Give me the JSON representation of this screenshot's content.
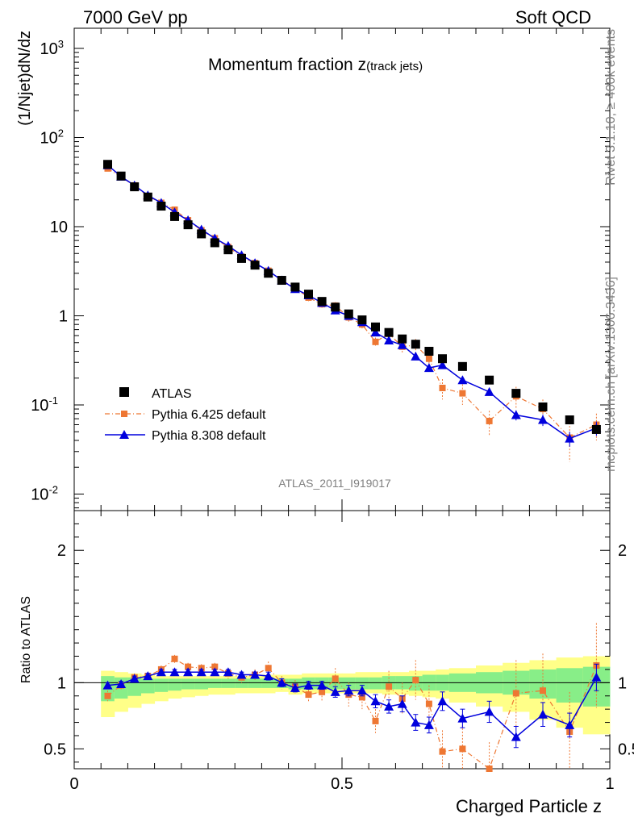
{
  "header": {
    "left": "7000 GeV pp",
    "right": "Soft QCD"
  },
  "side_text": {
    "rivet": "Rivet 3.1.10, ≥ 400k events",
    "mcplots": "mcplots.cern.ch [arXiv:1306.3436]"
  },
  "main": {
    "title_main": "Momentum fraction z",
    "title_sub": "(track jets)",
    "ylabel": "(1/Njet)dN/dz",
    "analysis": "ATLAS_2011_I919017"
  },
  "ratio": {
    "ylabel": "Ratio to ATLAS"
  },
  "xlabel": "Charged Particle z",
  "legend": [
    {
      "name": "ATLAS"
    },
    {
      "name": "Pythia 6.425 default"
    },
    {
      "name": "Pythia 8.308 default"
    }
  ],
  "colors": {
    "data": "#000000",
    "py6": "#ee7733",
    "py8": "#0000dd",
    "band_outer": "#ffff88",
    "band_inner": "#88ee88"
  },
  "chart_data": [
    {
      "type": "scatter",
      "title": "Momentum fraction z(track jets)",
      "xlabel": "Charged Particle z",
      "ylabel": "(1/Njet)dN/dz",
      "xlim": [
        0,
        1
      ],
      "ylim": [
        0.007,
        1400
      ],
      "yscale": "log",
      "y_tick_labels": [
        "10^-2",
        "10^-1",
        "1",
        "10",
        "10^2",
        "10^3"
      ],
      "x_tick_labels": [
        "0",
        "0.5",
        "1"
      ],
      "legend_position": "bottom-left",
      "series": [
        {
          "name": "ATLAS",
          "x": [
            0.0625,
            0.0875,
            0.1125,
            0.1375,
            0.1625,
            0.1875,
            0.2125,
            0.2375,
            0.2625,
            0.2875,
            0.3125,
            0.3375,
            0.3625,
            0.3875,
            0.4125,
            0.4375,
            0.4625,
            0.4875,
            0.5125,
            0.5375,
            0.5625,
            0.5875,
            0.6125,
            0.6375,
            0.6625,
            0.6875,
            0.725,
            0.775,
            0.825,
            0.875,
            0.925,
            0.975
          ],
          "y": [
            50,
            37,
            28,
            21.5,
            17,
            13,
            10.5,
            8.3,
            6.6,
            5.5,
            4.4,
            3.7,
            3.0,
            2.5,
            2.1,
            1.75,
            1.45,
            1.25,
            1.05,
            0.9,
            0.75,
            0.65,
            0.55,
            0.48,
            0.4,
            0.33,
            0.27,
            0.19,
            0.135,
            0.095,
            0.068,
            0.053
          ]
        },
        {
          "name": "Pythia 6.425 default",
          "x": [
            0.0625,
            0.0875,
            0.1125,
            0.1375,
            0.1625,
            0.1875,
            0.2125,
            0.2375,
            0.2625,
            0.2875,
            0.3125,
            0.3375,
            0.3625,
            0.3875,
            0.4125,
            0.4375,
            0.4625,
            0.4875,
            0.5125,
            0.5375,
            0.5625,
            0.5875,
            0.6125,
            0.6375,
            0.6625,
            0.6875,
            0.725,
            0.775,
            0.825,
            0.875,
            0.925,
            0.975
          ],
          "y": [
            45,
            36,
            29,
            22,
            18.5,
            15.5,
            11.8,
            9.1,
            7.4,
            5.9,
            4.6,
            3.9,
            3.2,
            2.5,
            2.05,
            1.6,
            1.35,
            1.3,
            0.96,
            0.8,
            0.51,
            0.63,
            0.45,
            0.47,
            0.33,
            0.155,
            0.135,
            0.066,
            0.125,
            0.09,
            0.043,
            0.06
          ],
          "err": [
            2,
            1.5,
            1.2,
            1,
            0.9,
            0.8,
            0.6,
            0.5,
            0.4,
            0.35,
            0.3,
            0.25,
            0.22,
            0.2,
            0.16,
            0.14,
            0.12,
            0.12,
            0.1,
            0.09,
            0.06,
            0.08,
            0.07,
            0.08,
            0.06,
            0.04,
            0.035,
            0.02,
            0.035,
            0.025,
            0.02,
            0.02
          ]
        },
        {
          "name": "Pythia 8.308 default",
          "x": [
            0.0625,
            0.0875,
            0.1125,
            0.1375,
            0.1625,
            0.1875,
            0.2125,
            0.2375,
            0.2625,
            0.2875,
            0.3125,
            0.3375,
            0.3625,
            0.3875,
            0.4125,
            0.4375,
            0.4625,
            0.4875,
            0.5125,
            0.5375,
            0.5625,
            0.5875,
            0.6125,
            0.6375,
            0.6625,
            0.6875,
            0.725,
            0.775,
            0.825,
            0.875,
            0.925,
            0.975
          ],
          "y": [
            49,
            36.5,
            29,
            22.5,
            18.5,
            14.5,
            11.8,
            9.3,
            7.4,
            6.1,
            4.8,
            3.9,
            3.2,
            2.5,
            2.0,
            1.7,
            1.4,
            1.15,
            1.0,
            0.85,
            0.65,
            0.53,
            0.47,
            0.35,
            0.26,
            0.28,
            0.19,
            0.14,
            0.077,
            0.068,
            0.042,
            0.055
          ],
          "err": [
            0.8,
            0.6,
            0.5,
            0.4,
            0.35,
            0.3,
            0.25,
            0.2,
            0.17,
            0.15,
            0.12,
            0.1,
            0.09,
            0.07,
            0.06,
            0.05,
            0.05,
            0.04,
            0.04,
            0.035,
            0.03,
            0.025,
            0.025,
            0.02,
            0.018,
            0.02,
            0.015,
            0.012,
            0.01,
            0.01,
            0.008,
            0.01
          ]
        }
      ]
    },
    {
      "type": "line",
      "ylabel": "Ratio to ATLAS",
      "xlim": [
        0,
        1
      ],
      "ylim": [
        0.35,
        2.3
      ],
      "y_tick_labels": [
        "0.5",
        "1",
        "2"
      ],
      "reference_line": 1,
      "bands": {
        "x_edges": [
          0.05,
          0.075,
          0.1,
          0.125,
          0.15,
          0.175,
          0.2,
          0.225,
          0.25,
          0.275,
          0.3,
          0.325,
          0.35,
          0.375,
          0.4,
          0.425,
          0.45,
          0.475,
          0.5,
          0.525,
          0.55,
          0.575,
          0.6,
          0.625,
          0.65,
          0.675,
          0.7,
          0.75,
          0.8,
          0.85,
          0.9,
          0.95,
          1.0
        ],
        "outer_lo": [
          0.74,
          0.78,
          0.81,
          0.84,
          0.86,
          0.88,
          0.89,
          0.9,
          0.91,
          0.91,
          0.92,
          0.92,
          0.92,
          0.93,
          0.91,
          0.92,
          0.92,
          0.92,
          0.92,
          0.92,
          0.92,
          0.91,
          0.91,
          0.9,
          0.89,
          0.88,
          0.85,
          0.82,
          0.78,
          0.72,
          0.66,
          0.61
        ],
        "outer_hi": [
          1.09,
          1.08,
          1.07,
          1.06,
          1.05,
          1.05,
          1.05,
          1.05,
          1.05,
          1.05,
          1.05,
          1.05,
          1.06,
          1.06,
          1.06,
          1.07,
          1.07,
          1.07,
          1.07,
          1.08,
          1.08,
          1.08,
          1.08,
          1.09,
          1.09,
          1.1,
          1.11,
          1.13,
          1.15,
          1.17,
          1.19,
          1.2
        ],
        "inner_lo": [
          0.86,
          0.88,
          0.9,
          0.92,
          0.93,
          0.94,
          0.95,
          0.95,
          0.96,
          0.96,
          0.96,
          0.96,
          0.96,
          0.96,
          0.95,
          0.95,
          0.95,
          0.95,
          0.95,
          0.95,
          0.95,
          0.95,
          0.95,
          0.94,
          0.94,
          0.94,
          0.93,
          0.92,
          0.91,
          0.88,
          0.85,
          0.82
        ],
        "inner_hi": [
          1.05,
          1.04,
          1.04,
          1.03,
          1.03,
          1.03,
          1.03,
          1.03,
          1.03,
          1.03,
          1.03,
          1.03,
          1.03,
          1.03,
          1.03,
          1.04,
          1.04,
          1.04,
          1.04,
          1.04,
          1.04,
          1.05,
          1.05,
          1.05,
          1.06,
          1.06,
          1.07,
          1.08,
          1.09,
          1.1,
          1.11,
          1.12
        ]
      },
      "series": [
        {
          "name": "Pythia 6.425 default",
          "x": [
            0.0625,
            0.0875,
            0.1125,
            0.1375,
            0.1625,
            0.1875,
            0.2125,
            0.2375,
            0.2625,
            0.2875,
            0.3125,
            0.3375,
            0.3625,
            0.3875,
            0.4125,
            0.4375,
            0.4625,
            0.4875,
            0.5125,
            0.5375,
            0.5625,
            0.5875,
            0.6125,
            0.6375,
            0.6625,
            0.6875,
            0.725,
            0.775,
            0.825,
            0.875,
            0.925,
            0.975
          ],
          "y": [
            0.9,
            0.98,
            1.04,
            1.05,
            1.1,
            1.18,
            1.12,
            1.11,
            1.12,
            1.07,
            1.04,
            1.06,
            1.11,
            1.0,
            0.97,
            0.91,
            0.93,
            1.03,
            0.91,
            0.89,
            0.71,
            0.97,
            0.88,
            1.02,
            0.84,
            0.48,
            0.5,
            0.35,
            0.92,
            0.94,
            0.63,
            1.13
          ],
          "err": [
            0.04,
            0.03,
            0.03,
            0.03,
            0.03,
            0.03,
            0.03,
            0.03,
            0.03,
            0.04,
            0.04,
            0.04,
            0.05,
            0.05,
            0.05,
            0.06,
            0.07,
            0.08,
            0.09,
            0.09,
            0.09,
            0.12,
            0.12,
            0.15,
            0.14,
            0.16,
            0.18,
            0.2,
            0.25,
            0.28,
            0.3,
            0.32
          ]
        },
        {
          "name": "Pythia 8.308 default",
          "x": [
            0.0625,
            0.0875,
            0.1125,
            0.1375,
            0.1625,
            0.1875,
            0.2125,
            0.2375,
            0.2625,
            0.2875,
            0.3125,
            0.3375,
            0.3625,
            0.3875,
            0.4125,
            0.4375,
            0.4625,
            0.4875,
            0.5125,
            0.5375,
            0.5625,
            0.5875,
            0.6125,
            0.6375,
            0.6625,
            0.6875,
            0.725,
            0.775,
            0.825,
            0.875,
            0.925,
            0.975
          ],
          "y": [
            0.98,
            0.99,
            1.03,
            1.05,
            1.08,
            1.08,
            1.08,
            1.08,
            1.08,
            1.08,
            1.06,
            1.06,
            1.05,
            1.0,
            0.96,
            0.98,
            0.98,
            0.93,
            0.94,
            0.94,
            0.86,
            0.82,
            0.84,
            0.7,
            0.68,
            0.86,
            0.73,
            0.78,
            0.59,
            0.76,
            0.68,
            1.04
          ],
          "err": [
            0.02,
            0.02,
            0.02,
            0.02,
            0.02,
            0.02,
            0.02,
            0.02,
            0.02,
            0.02,
            0.02,
            0.02,
            0.03,
            0.03,
            0.03,
            0.03,
            0.03,
            0.04,
            0.04,
            0.04,
            0.05,
            0.05,
            0.06,
            0.06,
            0.06,
            0.07,
            0.07,
            0.08,
            0.08,
            0.09,
            0.09,
            0.1
          ]
        }
      ]
    }
  ]
}
